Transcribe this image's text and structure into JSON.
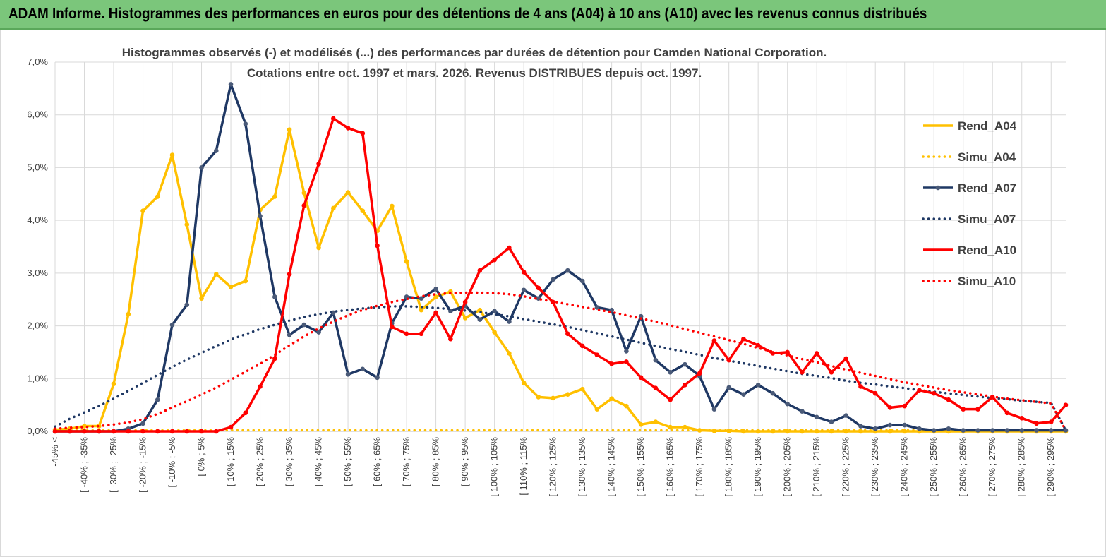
{
  "banner": {
    "title": "ADAM Informe. Histogrammes des performances en euros pour des détentions de 4 ans (A04) à 10 ans (A10) avec les revenus connus distribués"
  },
  "chart_data": {
    "type": "line",
    "title_line1": "Histogrammes observés (-) et modélisés (...)  des performances par durées de détention pour Camden National Corporation.",
    "title_line2": "Cotations entre oct. 1997 et mars. 2026. Revenus DISTRIBUES depuis oct. 1997.",
    "ylim": [
      0,
      7
    ],
    "yticks": [
      "0,0%",
      "1,0%",
      "2,0%",
      "3,0%",
      "4,0%",
      "5,0%",
      "6,0%",
      "7,0%"
    ],
    "x_labels": [
      "-45% <",
      "[ -40% ; -35%",
      "[ -30% ; -25%",
      "[ -20% ; -15%",
      "[ -10% ; -5%",
      "[ 0% ; 5%",
      "[ 10% ; 15%",
      "[ 20% ; 25%",
      "[ 30% ; 35%",
      "[ 40% ; 45%",
      "[ 50% ; 55%",
      "[ 60% ; 65%",
      "[ 70% ; 75%",
      "[ 80% ; 85%",
      "[ 90% ; 95%",
      "[ 100% ; 105%",
      "[ 110% ; 115%",
      "[ 120% ; 125%",
      "[ 130% ; 135%",
      "[ 140% ; 145%",
      "[ 150% ; 155%",
      "[ 160% ; 165%",
      "[ 170% ; 175%",
      "[ 180% ; 185%",
      "[ 190% ; 195%",
      "[ 200% ; 205%",
      "[ 210% ; 215%",
      "[ 220% ; 225%",
      "[ 230% ; 235%",
      "[ 240% ; 245%",
      "[ 250% ; 255%",
      "[ 260% ; 265%",
      "[ 270% ; 275%",
      "[ 280% ; 285%",
      "[ 290% ; 295%"
    ],
    "n_bins": 70,
    "series": [
      {
        "name": "Rend_A04",
        "style": "solid",
        "color": "#ffc000",
        "values": [
          0.03,
          0.05,
          0.1,
          0.1,
          0.9,
          2.22,
          4.18,
          4.45,
          5.24,
          3.92,
          2.52,
          2.98,
          2.74,
          2.85,
          4.2,
          4.45,
          5.72,
          4.52,
          3.48,
          4.23,
          4.53,
          4.18,
          3.8,
          4.27,
          3.22,
          2.3,
          2.55,
          2.65,
          2.15,
          2.3,
          1.88,
          1.48,
          0.92,
          0.65,
          0.63,
          0.7,
          0.8,
          0.42,
          0.62,
          0.48,
          0.13,
          0.18,
          0.08,
          0.08,
          0.02,
          0.01,
          0.01,
          0,
          0,
          0,
          0,
          0,
          0,
          0,
          0,
          0,
          0,
          0,
          0,
          0,
          0,
          0,
          0,
          0,
          0,
          0,
          0,
          0,
          0,
          0
        ]
      },
      {
        "name": "Simu_A04",
        "style": "dotted",
        "color": "#ffc000",
        "values": [
          0.02,
          0.02,
          0.02,
          0.02,
          0.02,
          0.02,
          0.02,
          0.02,
          0.02,
          0.02,
          0.02,
          0.02,
          0.02,
          0.02,
          0.02,
          0.02,
          0.02,
          0.02,
          0.02,
          0.02,
          0.02,
          0.02,
          0.02,
          0.02,
          0.02,
          0.02,
          0.02,
          0.02,
          0.02,
          0.02,
          0.02,
          0.02,
          0.02,
          0.02,
          0.02,
          0.02,
          0.02,
          0.02,
          0.02,
          0.02,
          0.02,
          0.02,
          0.02,
          0.02,
          0.02,
          0.02,
          0.02,
          0.02,
          0.02,
          0.02,
          0.02,
          0.02,
          0.02,
          0.02,
          0.02,
          0.02,
          0.02,
          0.02,
          0.02,
          0.02,
          0.02,
          0.02,
          0.02,
          0.02,
          0.02,
          0.02,
          0.02,
          0.02,
          0.02,
          0.02
        ]
      },
      {
        "name": "Rend_A07",
        "style": "solid",
        "color": "#1f3864",
        "values": [
          0,
          0,
          0,
          0,
          0,
          0.05,
          0.15,
          0.6,
          2.02,
          2.4,
          5.0,
          5.32,
          6.58,
          5.83,
          4.08,
          2.55,
          1.83,
          2.02,
          1.88,
          2.25,
          1.08,
          1.18,
          1.02,
          2.05,
          2.55,
          2.52,
          2.7,
          2.28,
          2.38,
          2.12,
          2.28,
          2.08,
          2.68,
          2.52,
          2.88,
          3.05,
          2.85,
          2.35,
          2.3,
          1.52,
          2.18,
          1.35,
          1.12,
          1.27,
          1.05,
          0.42,
          0.83,
          0.7,
          0.88,
          0.72,
          0.52,
          0.38,
          0.27,
          0.18,
          0.3,
          0.1,
          0.05,
          0.12,
          0.12,
          0.05,
          0.02,
          0.05,
          0.02,
          0.02,
          0.02,
          0.02,
          0.02,
          0.02,
          0.02,
          0.02
        ]
      },
      {
        "name": "Simu_A07",
        "style": "dotted",
        "color": "#1f3864",
        "values": [
          0.09,
          0.24,
          0.36,
          0.48,
          0.62,
          0.77,
          0.92,
          1.07,
          1.22,
          1.36,
          1.49,
          1.62,
          1.74,
          1.84,
          1.94,
          2.02,
          2.1,
          2.17,
          2.22,
          2.27,
          2.3,
          2.33,
          2.35,
          2.37,
          2.37,
          2.36,
          2.34,
          2.32,
          2.29,
          2.26,
          2.22,
          2.18,
          2.13,
          2.08,
          2.03,
          1.98,
          1.92,
          1.86,
          1.8,
          1.74,
          1.68,
          1.62,
          1.56,
          1.51,
          1.45,
          1.39,
          1.34,
          1.29,
          1.24,
          1.19,
          1.14,
          1.09,
          1.05,
          1.01,
          0.96,
          0.92,
          0.89,
          0.85,
          0.82,
          0.78,
          0.75,
          0.72,
          0.69,
          0.66,
          0.63,
          0.61,
          0.58,
          0.56,
          0.54,
          0.02
        ]
      },
      {
        "name": "Rend_A10",
        "style": "solid",
        "color": "#ff0000",
        "values": [
          0,
          0,
          0,
          0,
          0,
          0,
          0,
          0,
          0,
          0,
          0,
          0,
          0.08,
          0.35,
          0.85,
          1.38,
          2.98,
          4.28,
          5.07,
          5.93,
          5.75,
          5.65,
          3.52,
          1.98,
          1.85,
          1.85,
          2.25,
          1.75,
          2.45,
          3.05,
          3.25,
          3.48,
          3.02,
          2.72,
          2.45,
          1.85,
          1.62,
          1.45,
          1.28,
          1.32,
          1.02,
          0.82,
          0.6,
          0.88,
          1.1,
          1.72,
          1.35,
          1.75,
          1.63,
          1.48,
          1.5,
          1.12,
          1.48,
          1.12,
          1.38,
          0.85,
          0.72,
          0.45,
          0.48,
          0.78,
          0.72,
          0.6,
          0.42,
          0.42,
          0.65,
          0.35,
          0.25,
          0.15,
          0.18,
          0.5
        ]
      },
      {
        "name": "Simu_A10",
        "style": "dotted",
        "color": "#ff0000",
        "values": [
          0.05,
          0.07,
          0.08,
          0.1,
          0.13,
          0.17,
          0.23,
          0.33,
          0.45,
          0.57,
          0.7,
          0.83,
          0.98,
          1.13,
          1.28,
          1.45,
          1.63,
          1.8,
          1.95,
          2.08,
          2.2,
          2.3,
          2.38,
          2.45,
          2.51,
          2.56,
          2.6,
          2.62,
          2.63,
          2.63,
          2.62,
          2.6,
          2.56,
          2.51,
          2.46,
          2.41,
          2.36,
          2.31,
          2.26,
          2.2,
          2.14,
          2.08,
          2.01,
          1.94,
          1.87,
          1.8,
          1.73,
          1.66,
          1.58,
          1.51,
          1.44,
          1.37,
          1.31,
          1.24,
          1.17,
          1.11,
          1.05,
          0.99,
          0.93,
          0.88,
          0.83,
          0.78,
          0.74,
          0.7,
          0.66,
          0.62,
          0.59,
          0.56,
          0.53,
          0.02
        ]
      }
    ],
    "legend_position": "right"
  }
}
